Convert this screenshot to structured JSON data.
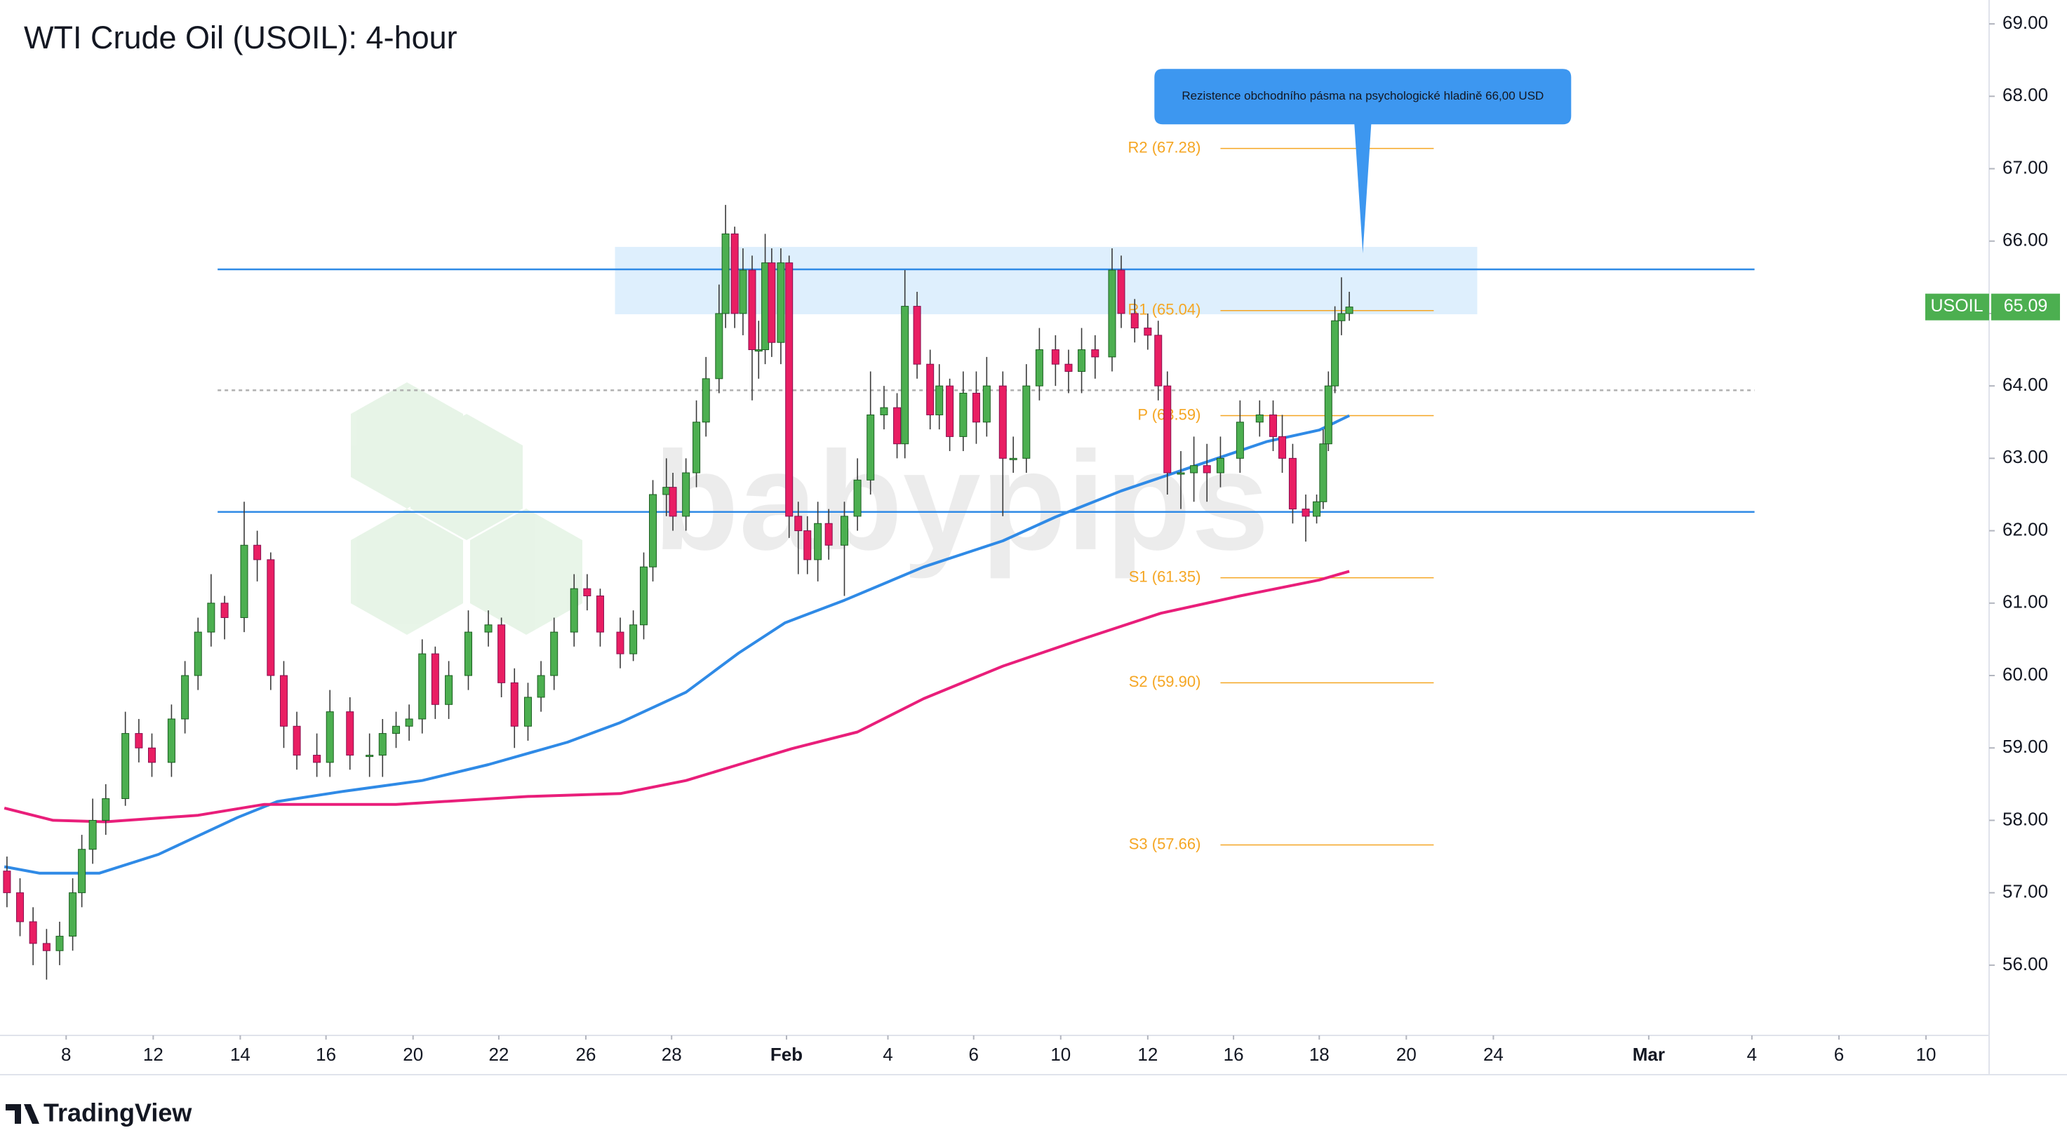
{
  "chart_data": {
    "type": "candlestick",
    "title": "WTI Crude Oil (USOIL): 4-hour",
    "symbol": "USOIL",
    "watermark": "babypips",
    "footer": "TradingView",
    "xlim": [
      -1.52,
      44.18
    ],
    "ylim": [
      55.03,
      69.33
    ],
    "xticks": [
      {
        "value": 0,
        "label": "8"
      },
      {
        "value": 2,
        "label": "12"
      },
      {
        "value": 4,
        "label": "14"
      },
      {
        "value": 5.97,
        "label": "16"
      },
      {
        "value": 7.97,
        "label": "20"
      },
      {
        "value": 9.94,
        "label": "22"
      },
      {
        "value": 11.94,
        "label": "26"
      },
      {
        "value": 13.91,
        "label": "28"
      },
      {
        "value": 16.55,
        "label": "Feb"
      },
      {
        "value": 18.88,
        "label": "4"
      },
      {
        "value": 20.85,
        "label": "6"
      },
      {
        "value": 22.85,
        "label": "10"
      },
      {
        "value": 24.85,
        "label": "12"
      },
      {
        "value": 26.82,
        "label": "16"
      },
      {
        "value": 28.79,
        "label": "18"
      },
      {
        "value": 30.79,
        "label": "20"
      },
      {
        "value": 32.79,
        "label": "24"
      },
      {
        "value": 36.36,
        "label": "Mar"
      },
      {
        "value": 38.73,
        "label": "4"
      },
      {
        "value": 40.73,
        "label": "6"
      },
      {
        "value": 42.73,
        "label": "10"
      }
    ],
    "yticks": [
      {
        "value": 56,
        "label": "56.00"
      },
      {
        "value": 57,
        "label": "57.00"
      },
      {
        "value": 58,
        "label": "58.00"
      },
      {
        "value": 59,
        "label": "59.00"
      },
      {
        "value": 60,
        "label": "60.00"
      },
      {
        "value": 61,
        "label": "61.00"
      },
      {
        "value": 62,
        "label": "62.00"
      },
      {
        "value": 63,
        "label": "63.00"
      },
      {
        "value": 64,
        "label": "64.00"
      },
      {
        "value": 65,
        "label": "65.00"
      },
      {
        "value": 66,
        "label": "66.00"
      },
      {
        "value": 67,
        "label": "67.00"
      },
      {
        "value": 68,
        "label": "68.00"
      },
      {
        "value": 69,
        "label": "69.00"
      }
    ],
    "up_color": "#4caf50",
    "down_color": "#e91e63",
    "wick_color": "#3a3a3a",
    "candles": {
      "x": [
        -1.36,
        -1.06,
        -0.76,
        -0.45,
        -0.15,
        0.15,
        0.36,
        0.61,
        0.91,
        1.36,
        1.67,
        1.97,
        2.42,
        2.73,
        3.03,
        3.33,
        3.64,
        4.09,
        4.39,
        4.7,
        5.0,
        5.3,
        5.76,
        6.06,
        6.52,
        6.97,
        7.27,
        7.58,
        7.88,
        8.18,
        8.48,
        8.79,
        9.24,
        9.7,
        10.0,
        10.3,
        10.61,
        10.91,
        11.21,
        11.67,
        11.97,
        12.27,
        12.73,
        13.03,
        13.27,
        13.48,
        13.79,
        13.94,
        14.24,
        14.48,
        14.7,
        15.0,
        15.15,
        15.36,
        15.55,
        15.76,
        15.91,
        16.06,
        16.21,
        16.42,
        16.61,
        16.82,
        17.03,
        17.27,
        17.52,
        17.88,
        18.18,
        18.48,
        18.79,
        19.09,
        19.27,
        19.55,
        19.85,
        20.06,
        20.3,
        20.61,
        20.91,
        21.15,
        21.52,
        21.76,
        22.06,
        22.36,
        22.73,
        23.03,
        23.33,
        23.64,
        24.03,
        24.24,
        24.55,
        24.85,
        25.09,
        25.3,
        25.61,
        25.91,
        26.21,
        26.52,
        26.97,
        27.42,
        27.73,
        27.94,
        28.18,
        28.48,
        28.73,
        28.88,
        29.0,
        29.15,
        29.3,
        29.48
      ],
      "open": [
        57.3,
        57.0,
        56.6,
        56.3,
        56.2,
        56.4,
        57.0,
        57.6,
        58.0,
        58.3,
        59.2,
        59.0,
        58.8,
        59.4,
        60.0,
        60.6,
        61.0,
        60.8,
        61.8,
        61.6,
        60.0,
        59.3,
        58.9,
        58.8,
        59.5,
        58.9,
        58.9,
        59.2,
        59.3,
        59.4,
        60.3,
        59.6,
        60.0,
        60.6,
        60.7,
        59.9,
        59.3,
        59.7,
        60.0,
        60.6,
        61.2,
        61.1,
        60.6,
        60.3,
        60.7,
        61.5,
        62.5,
        62.6,
        62.2,
        62.8,
        63.5,
        64.1,
        65.0,
        66.1,
        65.0,
        65.6,
        64.5,
        64.5,
        65.7,
        64.6,
        65.7,
        62.2,
        62.0,
        61.6,
        62.1,
        61.8,
        62.2,
        62.7,
        63.6,
        63.7,
        63.2,
        65.1,
        64.3,
        63.6,
        64.0,
        63.3,
        63.9,
        63.5,
        64.0,
        63.0,
        63.0,
        64.0,
        64.5,
        64.3,
        64.2,
        64.5,
        64.4,
        65.6,
        65.0,
        64.8,
        64.7,
        64.0,
        62.8,
        62.8,
        62.9,
        62.8,
        63.0,
        63.5,
        63.6,
        63.3,
        63.0,
        62.3,
        62.2,
        62.4,
        63.2,
        64.0,
        64.9,
        65.0
      ],
      "high": [
        57.5,
        57.2,
        56.8,
        56.5,
        56.6,
        57.2,
        57.8,
        58.3,
        58.5,
        59.5,
        59.4,
        59.2,
        59.6,
        60.2,
        60.8,
        61.4,
        61.1,
        62.4,
        62.0,
        61.7,
        60.2,
        59.5,
        59.2,
        59.8,
        59.7,
        59.2,
        59.4,
        59.5,
        59.6,
        60.5,
        60.4,
        60.2,
        60.9,
        60.9,
        60.8,
        60.1,
        59.9,
        60.2,
        60.8,
        61.4,
        61.4,
        61.2,
        60.8,
        60.9,
        61.7,
        62.7,
        63.0,
        62.8,
        63.0,
        63.8,
        64.4,
        65.4,
        66.5,
        66.2,
        65.9,
        65.8,
        64.9,
        66.1,
        65.9,
        65.9,
        65.8,
        62.4,
        62.2,
        62.4,
        62.3,
        62.4,
        63.0,
        64.2,
        64.0,
        63.9,
        65.6,
        65.3,
        64.5,
        64.3,
        64.1,
        64.2,
        64.2,
        64.4,
        64.2,
        63.3,
        64.3,
        64.8,
        64.7,
        64.5,
        64.8,
        64.7,
        65.9,
        65.8,
        65.2,
        65.0,
        64.9,
        64.2,
        63.1,
        63.3,
        63.2,
        63.3,
        63.8,
        63.8,
        63.8,
        63.6,
        63.2,
        62.5,
        62.5,
        63.4,
        64.2,
        65.1,
        65.5,
        65.3
      ],
      "low": [
        56.8,
        56.4,
        56.0,
        55.8,
        56.0,
        56.2,
        56.8,
        57.4,
        57.8,
        58.2,
        58.8,
        58.6,
        58.6,
        59.2,
        59.8,
        60.4,
        60.5,
        60.6,
        61.3,
        59.8,
        59.0,
        58.7,
        58.6,
        58.6,
        58.7,
        58.6,
        58.6,
        59.0,
        59.1,
        59.2,
        59.4,
        59.4,
        59.8,
        60.4,
        59.7,
        59.0,
        59.1,
        59.5,
        59.8,
        60.4,
        60.9,
        60.4,
        60.1,
        60.2,
        60.5,
        61.3,
        62.2,
        62.0,
        62.0,
        62.6,
        63.3,
        63.9,
        64.8,
        64.8,
        64.7,
        63.8,
        64.1,
        64.3,
        64.4,
        64.3,
        61.9,
        61.4,
        61.4,
        61.3,
        61.6,
        61.1,
        62.0,
        62.5,
        63.4,
        63.0,
        63.0,
        64.1,
        63.4,
        63.4,
        63.1,
        63.1,
        63.2,
        63.3,
        62.2,
        62.8,
        62.8,
        63.8,
        64.0,
        63.9,
        63.9,
        64.1,
        64.2,
        64.8,
        64.6,
        64.5,
        63.8,
        62.5,
        62.3,
        62.4,
        62.4,
        62.6,
        62.8,
        63.3,
        63.1,
        62.8,
        62.1,
        61.85,
        62.1,
        62.3,
        63.1,
        63.9,
        64.7,
        64.9
      ],
      "close": [
        57.0,
        56.6,
        56.3,
        56.2,
        56.4,
        57.0,
        57.6,
        58.0,
        58.3,
        59.2,
        59.0,
        58.8,
        59.4,
        60.0,
        60.6,
        61.0,
        60.8,
        61.8,
        61.6,
        60.0,
        59.3,
        58.9,
        58.8,
        59.5,
        58.9,
        58.9,
        59.2,
        59.3,
        59.4,
        60.3,
        59.6,
        60.0,
        60.6,
        60.7,
        59.9,
        59.3,
        59.7,
        60.0,
        60.6,
        61.2,
        61.1,
        60.6,
        60.3,
        60.7,
        61.5,
        62.5,
        62.6,
        62.2,
        62.8,
        63.5,
        64.1,
        65.0,
        66.1,
        65.0,
        65.6,
        64.5,
        64.5,
        65.7,
        64.6,
        65.7,
        62.2,
        62.0,
        61.6,
        62.1,
        61.8,
        62.2,
        62.7,
        63.6,
        63.7,
        63.2,
        65.1,
        64.3,
        63.6,
        64.0,
        63.3,
        63.9,
        63.5,
        64.0,
        63.0,
        63.0,
        64.0,
        64.5,
        64.3,
        64.2,
        64.5,
        64.4,
        65.6,
        65.0,
        64.8,
        64.7,
        64.0,
        62.8,
        62.8,
        62.9,
        62.8,
        63.0,
        63.5,
        63.6,
        63.3,
        63.0,
        62.3,
        62.2,
        62.4,
        63.2,
        64.0,
        64.9,
        65.0,
        65.09
      ]
    },
    "series": [
      {
        "color": "#2f8ae6",
        "x": [
          -1.42,
          -0.61,
          0.76,
          2.12,
          3.94,
          4.85,
          6.36,
          8.18,
          9.7,
          11.52,
          12.73,
          14.24,
          15.45,
          16.52,
          17.88,
          19.7,
          21.52,
          22.73,
          24.24,
          25.76,
          27.58,
          28.79,
          29.48
        ],
        "values": [
          57.36,
          57.27,
          57.27,
          57.53,
          58.04,
          58.26,
          58.4,
          58.55,
          58.77,
          59.08,
          59.35,
          59.77,
          60.31,
          60.73,
          61.04,
          61.5,
          61.86,
          62.19,
          62.55,
          62.86,
          63.23,
          63.39,
          63.59
        ]
      },
      {
        "color": "#e91e7a",
        "x": [
          -1.42,
          -0.3,
          0.91,
          3.03,
          4.55,
          7.58,
          10.61,
          12.73,
          14.24,
          15.45,
          16.67,
          18.18,
          19.7,
          21.52,
          23.33,
          25.15,
          26.97,
          28.79,
          29.48
        ],
        "values": [
          58.17,
          58.0,
          57.98,
          58.07,
          58.22,
          58.22,
          58.33,
          58.37,
          58.55,
          58.77,
          58.99,
          59.22,
          59.68,
          60.13,
          60.5,
          60.86,
          61.1,
          61.32,
          61.44
        ]
      }
    ],
    "zone": {
      "xlim": [
        12.61,
        32.42
      ],
      "ylim": [
        64.99,
        65.92
      ],
      "color": "#2196f3"
    },
    "levels": [
      {
        "value": 65.61,
        "xlim": [
          3.48,
          38.79
        ],
        "color": "#2f8ae6",
        "style": "solid"
      },
      {
        "value": 62.26,
        "xlim": [
          3.48,
          38.79
        ],
        "color": "#2f8ae6",
        "style": "solid"
      },
      {
        "value": 63.94,
        "xlim": [
          3.48,
          38.79
        ],
        "color": "#b0b0b0",
        "style": "dashed"
      }
    ],
    "pivot_color": "#f5a623",
    "pivot_xlim": [
      26.52,
      31.42
    ],
    "pivots": [
      {
        "label": "R2 (67.28)",
        "value": 67.28
      },
      {
        "label": "R1 (65.04)",
        "value": 65.04
      },
      {
        "label": "P (63.59)",
        "value": 63.59
      },
      {
        "label": "S1 (61.35)",
        "value": 61.35
      },
      {
        "label": "S2 (59.90)",
        "value": 59.9
      },
      {
        "label": "S3 (57.66)",
        "value": 57.66
      }
    ],
    "annotation": {
      "text": "Rezistence obchodního pásma na psychologické hladině 66,00 USD",
      "x": 29.79,
      "y": 65.83,
      "color": "#3d97f0"
    }
  }
}
